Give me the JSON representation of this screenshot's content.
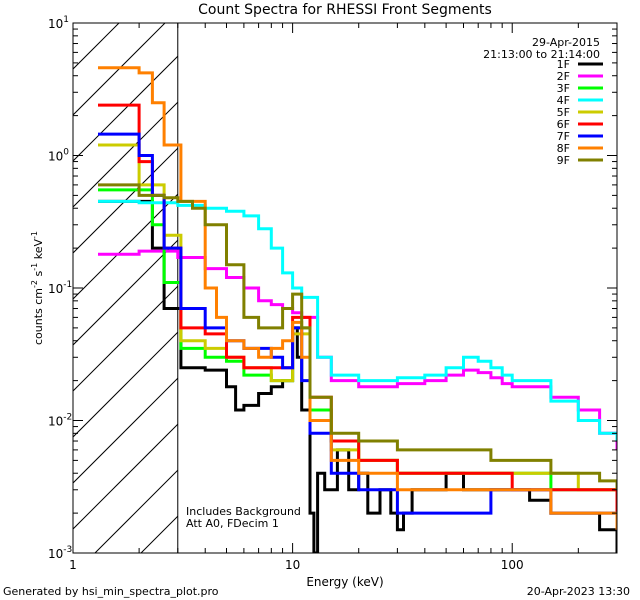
{
  "chart_data": {
    "type": "line",
    "title": "Count Spectra for RHESSI Front Segments",
    "xlabel": "Energy (keV)",
    "ylabel": {
      "prefix": "counts cm",
      "sup1": "-2",
      "mid1": " s",
      "sup2": "-1",
      "mid2": " keV",
      "sup3": "-1"
    },
    "xscale": "log",
    "yscale": "log",
    "xlim": [
      1,
      300
    ],
    "ylim": [
      0.001,
      10
    ],
    "x_ticks": [
      {
        "value": 1,
        "label": "1"
      },
      {
        "value": 10,
        "label": "10"
      },
      {
        "value": 100,
        "label": "100"
      }
    ],
    "y_ticks": [
      {
        "value": 0.001,
        "base": "10",
        "exp": "-3"
      },
      {
        "value": 0.01,
        "base": "10",
        "exp": "-2"
      },
      {
        "value": 0.1,
        "base": "10",
        "exp": "-1"
      },
      {
        "value": 1,
        "base": "10",
        "exp": "0"
      },
      {
        "value": 10,
        "base": "10",
        "exp": "1"
      }
    ],
    "hatch_region": {
      "x_min": 1,
      "x_max": 3
    },
    "date": "29-Apr-2015",
    "time_range": "21:13:00 to 21:14:00",
    "annotations": [
      "Includes Background",
      "Att A0, FDecim 1"
    ],
    "series": [
      {
        "name": "1F",
        "color": "#000000",
        "x": [
          1.3,
          2.3,
          2.6,
          3.1,
          4,
          5,
          5.5,
          6,
          7,
          8,
          9,
          10,
          10.5,
          11,
          12,
          12.5,
          13,
          14,
          16,
          18,
          20,
          22,
          25,
          28,
          30,
          32,
          35,
          40,
          50,
          60,
          80,
          100,
          120,
          150,
          200,
          250,
          300
        ],
        "y": [
          0.45,
          0.2,
          0.07,
          0.025,
          0.024,
          0.018,
          0.012,
          0.013,
          0.016,
          0.018,
          0.02,
          0.05,
          0.03,
          0.012,
          0.002,
          0.001,
          0.004,
          0.003,
          0.006,
          0.003,
          0.004,
          0.002,
          0.003,
          0.002,
          0.0015,
          0.002,
          0.003,
          0.003,
          0.004,
          0.003,
          0.003,
          0.003,
          0.0025,
          0.002,
          0.002,
          0.0015,
          0.001
        ]
      },
      {
        "name": "2F",
        "color": "#ff00ff",
        "x": [
          1.3,
          2,
          3,
          4,
          5,
          6,
          7,
          8,
          9,
          10,
          11,
          13,
          15,
          20,
          30,
          40,
          50,
          60,
          70,
          80,
          90,
          100,
          150,
          200,
          250,
          300
        ],
        "y": [
          0.18,
          0.19,
          0.17,
          0.14,
          0.12,
          0.1,
          0.08,
          0.075,
          0.07,
          0.065,
          0.06,
          0.03,
          0.02,
          0.018,
          0.019,
          0.02,
          0.022,
          0.024,
          0.023,
          0.021,
          0.019,
          0.018,
          0.015,
          0.012,
          0.008,
          0.006
        ]
      },
      {
        "name": "3F",
        "color": "#00ff00",
        "x": [
          1.3,
          2.3,
          2.6,
          3.1,
          4,
          5,
          6,
          8,
          10,
          12,
          15,
          20,
          30,
          50,
          80,
          100,
          150,
          200,
          300
        ],
        "y": [
          0.55,
          0.3,
          0.11,
          0.035,
          0.03,
          0.028,
          0.022,
          0.02,
          0.05,
          0.012,
          0.007,
          0.005,
          0.004,
          0.004,
          0.004,
          0.004,
          0.003,
          0.003,
          0.002
        ]
      },
      {
        "name": "4F",
        "color": "#00ffff",
        "x": [
          1.3,
          2,
          3,
          4,
          5,
          6,
          7,
          8,
          9,
          10,
          11,
          13,
          15,
          20,
          30,
          40,
          50,
          60,
          70,
          80,
          90,
          100,
          150,
          200,
          250,
          300
        ],
        "y": [
          0.45,
          0.44,
          0.42,
          0.4,
          0.38,
          0.35,
          0.28,
          0.2,
          0.13,
          0.1,
          0.085,
          0.03,
          0.022,
          0.02,
          0.021,
          0.022,
          0.025,
          0.03,
          0.028,
          0.025,
          0.022,
          0.02,
          0.014,
          0.01,
          0.008,
          0.007
        ]
      },
      {
        "name": "5F",
        "color": "#cccc00",
        "x": [
          1.3,
          2,
          2.6,
          3.1,
          4,
          5,
          6,
          8,
          10,
          12,
          15,
          20,
          30,
          50,
          100,
          200,
          300
        ],
        "y": [
          1.2,
          0.6,
          0.25,
          0.04,
          0.035,
          0.03,
          0.025,
          0.02,
          0.045,
          0.01,
          0.006,
          0.005,
          0.004,
          0.004,
          0.004,
          0.003,
          0.002
        ]
      },
      {
        "name": "6F",
        "color": "#ff0000",
        "x": [
          1.3,
          2,
          2.3,
          2.6,
          3.1,
          4,
          5,
          6,
          8,
          10,
          12,
          15,
          20,
          30,
          50,
          100,
          200,
          300
        ],
        "y": [
          2.4,
          0.9,
          0.5,
          0.2,
          0.05,
          0.045,
          0.03,
          0.025,
          0.025,
          0.06,
          0.015,
          0.007,
          0.005,
          0.004,
          0.004,
          0.003,
          0.003,
          0.002
        ]
      },
      {
        "name": "7F",
        "color": "#0000ff",
        "x": [
          1.3,
          2,
          2.3,
          2.6,
          3.1,
          4,
          5,
          6,
          8,
          9,
          10,
          11,
          12,
          15,
          20,
          30,
          50,
          80,
          100,
          150,
          200,
          300
        ],
        "y": [
          1.45,
          1.0,
          0.5,
          0.2,
          0.07,
          0.05,
          0.04,
          0.035,
          0.03,
          0.025,
          0.05,
          0.02,
          0.008,
          0.004,
          0.003,
          0.002,
          0.002,
          0.003,
          0.003,
          0.002,
          0.002,
          0.0015
        ]
      },
      {
        "name": "8F",
        "color": "#ff8000",
        "x": [
          1.3,
          2,
          2.3,
          2.6,
          3.1,
          4,
          4.5,
          5,
          6,
          7,
          8,
          9,
          10,
          11,
          12,
          15,
          20,
          30,
          50,
          80,
          100,
          150,
          200,
          300
        ],
        "y": [
          4.6,
          4.2,
          2.5,
          1.2,
          0.45,
          0.1,
          0.06,
          0.04,
          0.035,
          0.03,
          0.035,
          0.04,
          0.055,
          0.03,
          0.01,
          0.005,
          0.004,
          0.003,
          0.003,
          0.003,
          0.003,
          0.002,
          0.002,
          0.0015
        ]
      },
      {
        "name": "9F",
        "color": "#808000",
        "x": [
          1.3,
          2,
          2.6,
          3,
          3.5,
          4,
          5,
          6,
          7,
          8,
          9,
          10,
          11,
          12,
          15,
          20,
          30,
          50,
          80,
          100,
          150,
          200,
          250,
          300
        ],
        "y": [
          0.6,
          0.5,
          0.48,
          0.45,
          0.4,
          0.3,
          0.15,
          0.06,
          0.05,
          0.05,
          0.07,
          0.09,
          0.05,
          0.015,
          0.008,
          0.007,
          0.006,
          0.006,
          0.005,
          0.005,
          0.004,
          0.004,
          0.0035,
          0.003
        ]
      }
    ]
  },
  "footer": {
    "generated_by": "Generated by hsi_min_spectra_plot.pro",
    "timestamp": "20-Apr-2023 13:30"
  }
}
